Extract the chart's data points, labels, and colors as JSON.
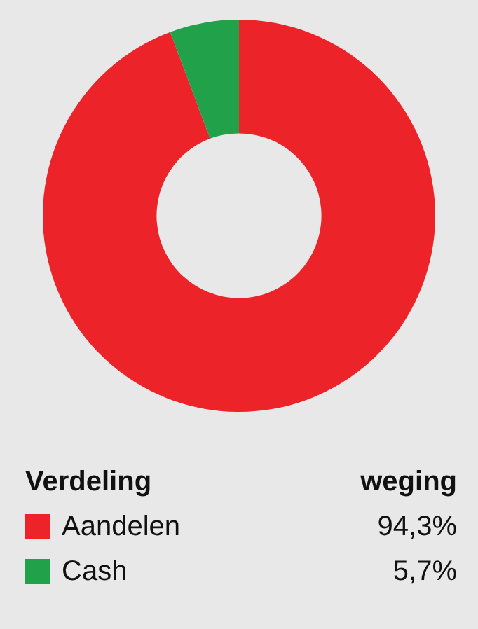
{
  "chart_data": {
    "type": "donut",
    "legend_title": "Verdeling",
    "annotations": [
      "weging"
    ],
    "categories": [
      "Aandelen",
      "Cash"
    ],
    "values": [
      94.3,
      5.7
    ],
    "colors": [
      "#ec2329",
      "#21a24a"
    ],
    "value_labels": [
      "94,3%",
      "5,7%"
    ],
    "legend": "bottom"
  }
}
